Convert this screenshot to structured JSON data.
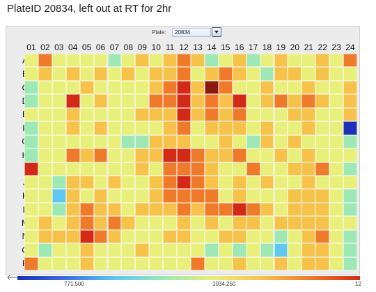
{
  "caption": "PlateID 20834, left out at RT for 2hr",
  "plate_selector": {
    "label": "Plate:",
    "value": "20834"
  },
  "columns": [
    "01",
    "02",
    "03",
    "04",
    "05",
    "06",
    "07",
    "08",
    "09",
    "10",
    "11",
    "12",
    "13",
    "14",
    "15",
    "16",
    "17",
    "18",
    "19",
    "20",
    "21",
    "22",
    "23",
    "24"
  ],
  "rows": [
    "A",
    "B",
    "C",
    "D",
    "E",
    "F",
    "G",
    "H",
    "I",
    "J",
    "K",
    "L",
    "M",
    "N",
    "O",
    "P"
  ],
  "color_scale": {
    "min_label": "771.500",
    "mid_label": "1034.250",
    "max_label": "12",
    "colors": [
      "#1d2fb8",
      "#5fc7f0",
      "#9de8b4",
      "#e8ef7a",
      "#f6c24a",
      "#ee7a2a",
      "#d32a18",
      "#8a1a10"
    ]
  },
  "chart_data": {
    "type": "heatmap",
    "title": "",
    "x": [
      "01",
      "02",
      "03",
      "04",
      "05",
      "06",
      "07",
      "08",
      "09",
      "10",
      "11",
      "12",
      "13",
      "14",
      "15",
      "16",
      "17",
      "18",
      "19",
      "20",
      "21",
      "22",
      "23",
      "24"
    ],
    "y": [
      "A",
      "B",
      "C",
      "D",
      "E",
      "F",
      "G",
      "H",
      "I",
      "J",
      "K",
      "L",
      "M",
      "N",
      "O",
      "P"
    ],
    "scale_levels": "0=dark blue, 1=light blue, 2=green, 3=yellow-green, 4=yellow, 5=orange, 6=red, 7=dark red",
    "values": [
      [
        3,
        5,
        3,
        3,
        3,
        3,
        2,
        3,
        4,
        3,
        4,
        5,
        4,
        2,
        3,
        4,
        2,
        3,
        4,
        3,
        3,
        4,
        3,
        5
      ],
      [
        3,
        4,
        3,
        4,
        3,
        4,
        3,
        4,
        3,
        4,
        4,
        5,
        3,
        4,
        5,
        4,
        3,
        2,
        4,
        4,
        3,
        4,
        3,
        3
      ],
      [
        2,
        3,
        3,
        3,
        4,
        3,
        3,
        3,
        3,
        4,
        5,
        6,
        4,
        7,
        5,
        3,
        3,
        4,
        3,
        3,
        4,
        3,
        3,
        4
      ],
      [
        2,
        3,
        3,
        6,
        3,
        4,
        3,
        3,
        3,
        5,
        5,
        6,
        4,
        5,
        4,
        6,
        3,
        4,
        5,
        4,
        5,
        4,
        3,
        4
      ],
      [
        3,
        3,
        3,
        4,
        3,
        3,
        3,
        3,
        4,
        4,
        4,
        6,
        4,
        5,
        4,
        5,
        3,
        3,
        3,
        4,
        4,
        3,
        3,
        4
      ],
      [
        2,
        3,
        3,
        4,
        3,
        4,
        3,
        3,
        3,
        3,
        4,
        5,
        3,
        4,
        4,
        4,
        3,
        4,
        3,
        3,
        4,
        3,
        3,
        0
      ],
      [
        2,
        3,
        3,
        3,
        3,
        3,
        3,
        2,
        2,
        4,
        4,
        4,
        3,
        3,
        4,
        3,
        2,
        4,
        3,
        4,
        3,
        3,
        3,
        2
      ],
      [
        2,
        3,
        3,
        5,
        4,
        5,
        3,
        3,
        4,
        4,
        6,
        6,
        5,
        4,
        4,
        5,
        3,
        3,
        4,
        3,
        4,
        3,
        3,
        3
      ],
      [
        6,
        3,
        3,
        3,
        3,
        3,
        3,
        3,
        4,
        3,
        5,
        5,
        5,
        4,
        3,
        3,
        5,
        3,
        3,
        4,
        4,
        5,
        3,
        2
      ],
      [
        3,
        3,
        2,
        4,
        4,
        3,
        4,
        3,
        3,
        4,
        5,
        6,
        5,
        4,
        3,
        4,
        3,
        4,
        3,
        3,
        4,
        3,
        3,
        3
      ],
      [
        3,
        3,
        1,
        4,
        3,
        4,
        3,
        3,
        3,
        4,
        5,
        5,
        5,
        5,
        3,
        4,
        3,
        3,
        3,
        4,
        4,
        4,
        3,
        2
      ],
      [
        3,
        3,
        2,
        4,
        5,
        4,
        4,
        3,
        4,
        4,
        4,
        5,
        4,
        5,
        5,
        6,
        5,
        4,
        3,
        4,
        4,
        4,
        3,
        2
      ],
      [
        3,
        4,
        3,
        4,
        5,
        4,
        5,
        4,
        3,
        3,
        3,
        4,
        3,
        4,
        3,
        4,
        4,
        3,
        4,
        4,
        4,
        4,
        3,
        3
      ],
      [
        3,
        4,
        4,
        4,
        6,
        5,
        4,
        3,
        3,
        3,
        4,
        4,
        3,
        3,
        4,
        4,
        3,
        3,
        2,
        3,
        4,
        5,
        3,
        2
      ],
      [
        3,
        2,
        3,
        3,
        4,
        3,
        3,
        3,
        4,
        3,
        3,
        3,
        3,
        2,
        3,
        2,
        3,
        2,
        1,
        3,
        4,
        4,
        3,
        2
      ],
      [
        5,
        3,
        3,
        3,
        4,
        3,
        3,
        3,
        3,
        3,
        3,
        3,
        5,
        3,
        3,
        4,
        3,
        3,
        4,
        3,
        4,
        4,
        3,
        2
      ]
    ]
  }
}
